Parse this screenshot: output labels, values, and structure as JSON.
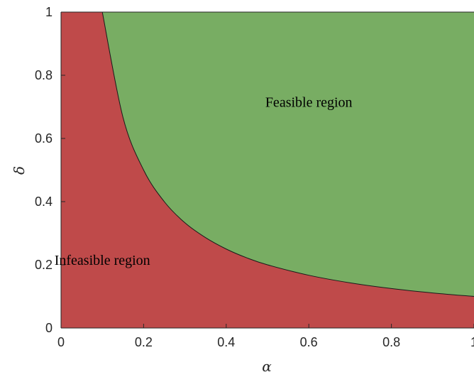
{
  "chart_data": {
    "type": "area",
    "title": "",
    "xlabel": "α",
    "ylabel": "δ",
    "xlim": [
      0,
      1
    ],
    "ylim": [
      0,
      1
    ],
    "x_ticks": [
      "0",
      "0.2",
      "0.4",
      "0.6",
      "0.8",
      "1"
    ],
    "y_ticks": [
      "0",
      "0.2",
      "0.4",
      "0.6",
      "0.8",
      "1"
    ],
    "grid": false,
    "boundary": {
      "x": [
        0.1,
        0.15,
        0.2,
        0.25,
        0.3,
        0.35,
        0.4,
        0.45,
        0.5,
        0.6,
        0.7,
        0.8,
        0.9,
        1.0
      ],
      "y": [
        1.0,
        0.667,
        0.5,
        0.4,
        0.333,
        0.286,
        0.25,
        0.222,
        0.2,
        0.167,
        0.143,
        0.125,
        0.111,
        0.1
      ]
    },
    "regions": [
      {
        "name": "Infeasible region",
        "side": "below",
        "color": "#bf4a4a"
      },
      {
        "name": "Feasible region",
        "side": "above",
        "color": "#78ad63"
      }
    ],
    "annotations": [
      {
        "text": "Feasible region",
        "x": 0.6,
        "y": 0.7
      },
      {
        "text": "Infeasible region",
        "x": 0.1,
        "y": 0.2
      }
    ]
  }
}
